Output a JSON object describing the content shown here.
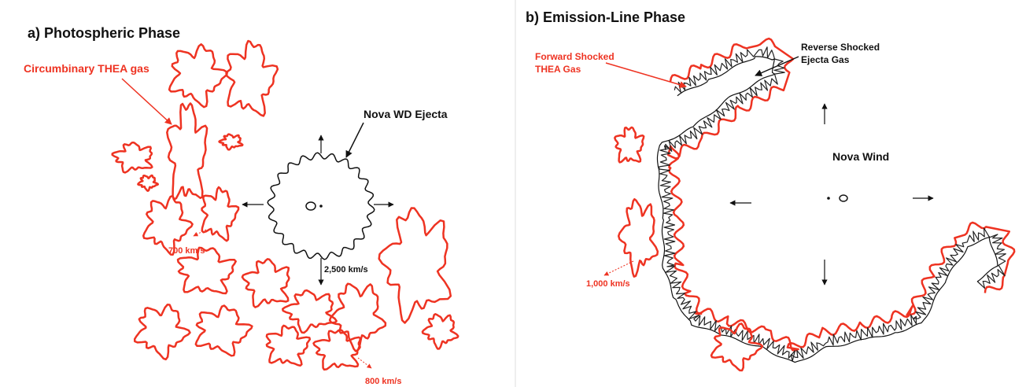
{
  "panels": [
    {
      "title": "a) Photospheric Phase",
      "labels": {
        "thea": "Circumbinary THEA gas",
        "ejecta": "Nova WD Ejecta",
        "v1": "700 km/s",
        "v2": "2,500 km/s",
        "v3": "800 km/s"
      }
    },
    {
      "title": "b) Emission-Line Phase",
      "labels": {
        "forward": [
          "Forward Shocked",
          "THEA Gas"
        ],
        "reverse": [
          "Reverse Shocked",
          "Ejecta Gas"
        ],
        "wind": "Nova Wind",
        "v1": "1,000 km/s"
      }
    }
  ]
}
